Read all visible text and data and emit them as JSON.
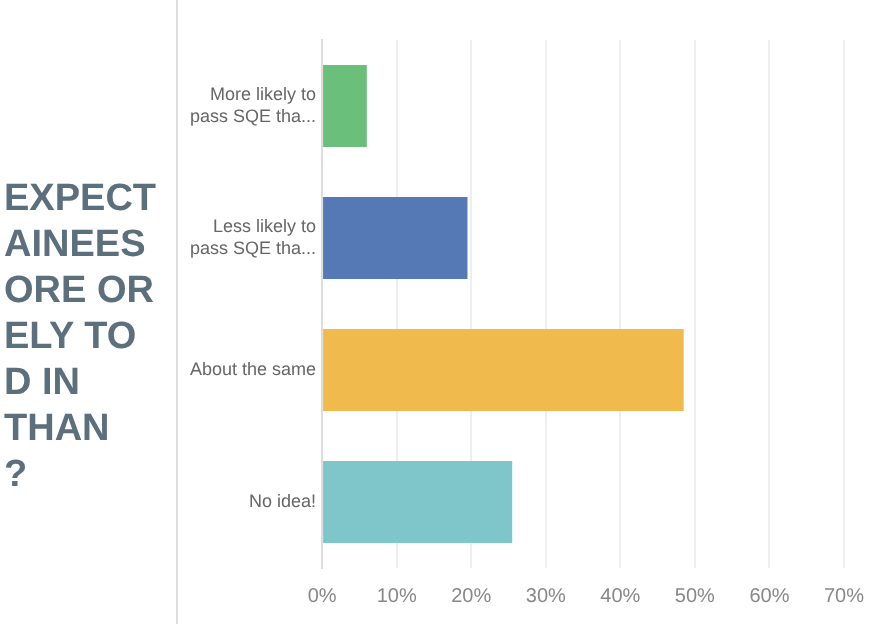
{
  "chart_data": {
    "type": "bar",
    "orientation": "horizontal",
    "title": "EXPECT\nAINEES\nORE OR\nELY TO\nD IN\nTHAN\n?",
    "categories": [
      "More likely to pass SQE tha...",
      "Less likely to pass SQE tha...",
      "About the same",
      "No idea!"
    ],
    "values": [
      6,
      19.5,
      48.5,
      25.5
    ],
    "colors": [
      "#6abf7b",
      "#5479b4",
      "#f0bb4c",
      "#7fc6ca"
    ],
    "xlim": [
      0,
      70
    ],
    "xticks": [
      {
        "value": 0,
        "label": "0%"
      },
      {
        "value": 10,
        "label": "10%"
      },
      {
        "value": 20,
        "label": "20%"
      },
      {
        "value": 30,
        "label": "30%"
      },
      {
        "value": 40,
        "label": "40%"
      },
      {
        "value": 50,
        "label": "50%"
      },
      {
        "value": 60,
        "label": "60%"
      },
      {
        "value": 70,
        "label": "70%"
      }
    ],
    "grid": "x",
    "legend": false
  }
}
